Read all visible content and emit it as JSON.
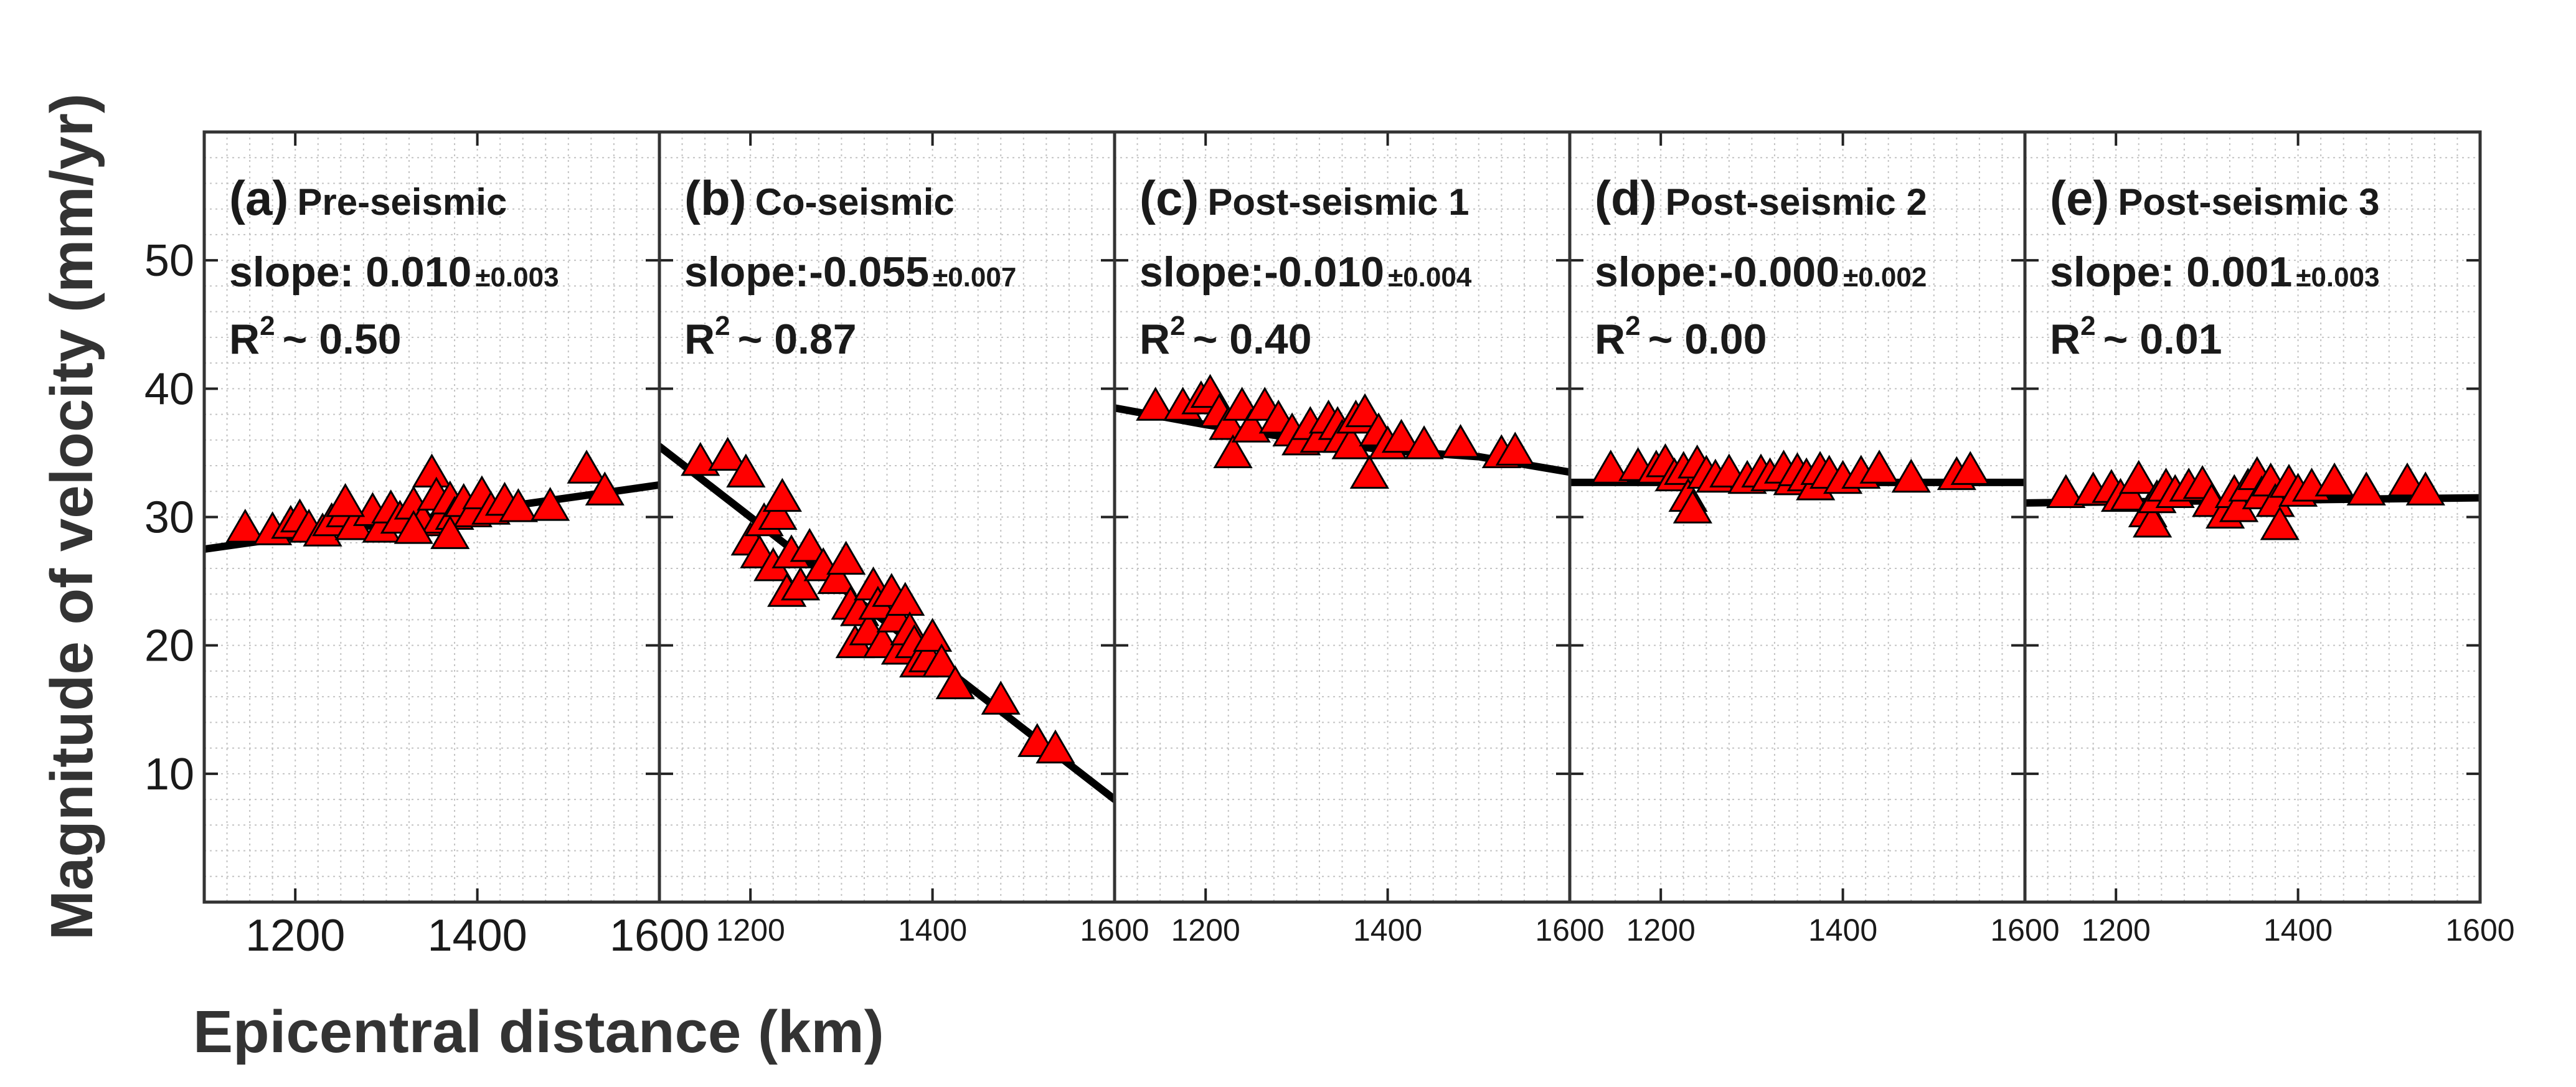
{
  "figure": {
    "ylabel": "Magnitude of velocity (mm/yr)",
    "xlabel": "Epicentral distance (km)"
  },
  "chart_data": [
    {
      "type": "scatter",
      "panel": "(a)",
      "title": "Pre-seismic",
      "slope_text": "slope: 0.010",
      "slope_err": "±0.003",
      "r2_value": "~ 0.50",
      "xlim": [
        1100,
        1600
      ],
      "ylim": [
        0,
        60
      ],
      "x_ticks": [
        "1200",
        "1400",
        "1600"
      ],
      "y_ticks": [
        "10",
        "20",
        "30",
        "40",
        "50"
      ],
      "points": [
        [
          1145,
          29
        ],
        [
          1175,
          28.8
        ],
        [
          1195,
          29.3
        ],
        [
          1205,
          29.8
        ],
        [
          1215,
          29
        ],
        [
          1230,
          28.7
        ],
        [
          1240,
          29.5
        ],
        [
          1255,
          30.2
        ],
        [
          1265,
          29.2
        ],
        [
          1285,
          30.3
        ],
        [
          1295,
          29
        ],
        [
          1305,
          30.5
        ],
        [
          1315,
          29.7
        ],
        [
          1330,
          30.8
        ],
        [
          1340,
          29.5
        ],
        [
          1350,
          33.3
        ],
        [
          1355,
          31.5
        ],
        [
          1360,
          29.7
        ],
        [
          1370,
          31.2
        ],
        [
          1375,
          30
        ],
        [
          1385,
          31
        ],
        [
          1395,
          30.2
        ],
        [
          1405,
          31.6
        ],
        [
          1415,
          30.4
        ],
        [
          1430,
          31.1
        ],
        [
          1445,
          30.6
        ],
        [
          1480,
          30.7
        ],
        [
          1520,
          33.6
        ],
        [
          1540,
          31.9
        ],
        [
          1255,
          31
        ],
        [
          1330,
          28.9
        ],
        [
          1370,
          28.5
        ]
      ],
      "fit": [
        [
          1100,
          27.5
        ],
        [
          1600,
          32.5
        ]
      ]
    },
    {
      "type": "scatter",
      "panel": "(b)",
      "title": "Co-seismic",
      "slope_text": "slope:-0.055",
      "slope_err": "±0.007",
      "r2_value": "~ 0.87",
      "xlim": [
        1100,
        1600
      ],
      "ylim": [
        0,
        60
      ],
      "x_ticks": [
        "1200",
        "1400",
        "1600"
      ],
      "y_ticks": [],
      "points": [
        [
          1145,
          34.2
        ],
        [
          1175,
          34.6
        ],
        [
          1195,
          33.3
        ],
        [
          1200,
          28
        ],
        [
          1210,
          27
        ],
        [
          1215,
          29.5
        ],
        [
          1225,
          26
        ],
        [
          1230,
          30
        ],
        [
          1235,
          31.4
        ],
        [
          1240,
          24
        ],
        [
          1245,
          27
        ],
        [
          1255,
          24.5
        ],
        [
          1265,
          27.5
        ],
        [
          1280,
          26
        ],
        [
          1295,
          25
        ],
        [
          1305,
          26.5
        ],
        [
          1310,
          23
        ],
        [
          1315,
          20
        ],
        [
          1320,
          22.5
        ],
        [
          1330,
          21
        ],
        [
          1335,
          24.5
        ],
        [
          1340,
          23
        ],
        [
          1345,
          20
        ],
        [
          1355,
          24
        ],
        [
          1360,
          22
        ],
        [
          1365,
          19.5
        ],
        [
          1370,
          23.3
        ],
        [
          1375,
          21
        ],
        [
          1380,
          20
        ],
        [
          1385,
          18.5
        ],
        [
          1395,
          18.9
        ],
        [
          1400,
          20.5
        ],
        [
          1410,
          18.5
        ],
        [
          1425,
          16.8
        ],
        [
          1475,
          15.6
        ],
        [
          1515,
          12.3
        ],
        [
          1535,
          11.8
        ]
      ],
      "fit": [
        [
          1100,
          35.5
        ],
        [
          1600,
          8
        ]
      ]
    },
    {
      "type": "scatter",
      "panel": "(c)",
      "title": "Post-seismic 1",
      "slope_text": "slope:-0.010",
      "slope_err": "±0.004",
      "r2_value": "~ 0.40",
      "xlim": [
        1100,
        1600
      ],
      "ylim": [
        0,
        60
      ],
      "x_ticks": [
        "1200",
        "1400",
        "1600"
      ],
      "y_ticks": [],
      "points": [
        [
          1145,
          38.5
        ],
        [
          1175,
          38.5
        ],
        [
          1195,
          39
        ],
        [
          1205,
          39.5
        ],
        [
          1215,
          38
        ],
        [
          1225,
          37
        ],
        [
          1230,
          34.8
        ],
        [
          1240,
          38.5
        ],
        [
          1250,
          36.8
        ],
        [
          1265,
          38.5
        ],
        [
          1280,
          37.5
        ],
        [
          1295,
          36.5
        ],
        [
          1305,
          35.8
        ],
        [
          1315,
          37
        ],
        [
          1325,
          36
        ],
        [
          1335,
          37.5
        ],
        [
          1345,
          37
        ],
        [
          1350,
          36
        ],
        [
          1360,
          35.5
        ],
        [
          1365,
          37.5
        ],
        [
          1375,
          38
        ],
        [
          1380,
          33.2
        ],
        [
          1390,
          36.5
        ],
        [
          1400,
          35.5
        ],
        [
          1415,
          36
        ],
        [
          1440,
          35.5
        ],
        [
          1480,
          35.6
        ],
        [
          1525,
          34.8
        ],
        [
          1540,
          35
        ]
      ],
      "fit": [
        [
          1100,
          38.5
        ],
        [
          1200,
          37.2
        ],
        [
          1300,
          36.1
        ],
        [
          1400,
          35.2
        ],
        [
          1500,
          34.7
        ],
        [
          1600,
          33.5
        ]
      ]
    },
    {
      "type": "scatter",
      "panel": "(d)",
      "title": "Post-seismic 2",
      "slope_text": "slope:-0.000",
      "slope_err": "±0.002",
      "r2_value": "~ 0.00",
      "xlim": [
        1100,
        1600
      ],
      "ylim": [
        0,
        60
      ],
      "x_ticks": [
        "1200",
        "1400",
        "1600"
      ],
      "y_ticks": [],
      "points": [
        [
          1145,
          33.6
        ],
        [
          1175,
          33.8
        ],
        [
          1195,
          33.6
        ],
        [
          1205,
          34.1
        ],
        [
          1215,
          33
        ],
        [
          1225,
          33.5
        ],
        [
          1230,
          31.4
        ],
        [
          1235,
          30.5
        ],
        [
          1240,
          34
        ],
        [
          1250,
          33.2
        ],
        [
          1260,
          32.9
        ],
        [
          1275,
          33.3
        ],
        [
          1295,
          32.8
        ],
        [
          1310,
          33.3
        ],
        [
          1320,
          33
        ],
        [
          1335,
          33.6
        ],
        [
          1345,
          32.7
        ],
        [
          1350,
          33.4
        ],
        [
          1360,
          33
        ],
        [
          1370,
          32.3
        ],
        [
          1375,
          33.5
        ],
        [
          1385,
          33.2
        ],
        [
          1400,
          32.8
        ],
        [
          1420,
          33.2
        ],
        [
          1440,
          33.6
        ],
        [
          1475,
          32.9
        ],
        [
          1525,
          33.1
        ],
        [
          1540,
          33.5
        ]
      ],
      "fit": [
        [
          1100,
          32.7
        ],
        [
          1600,
          32.7
        ]
      ]
    },
    {
      "type": "scatter",
      "panel": "(e)",
      "title": "Post-seismic 3",
      "slope_text": "slope: 0.001",
      "slope_err": "±0.003",
      "r2_value": "~ 0.01",
      "xlim": [
        1100,
        1600
      ],
      "ylim": [
        0,
        60
      ],
      "x_ticks": [
        "1200",
        "1400",
        "1600"
      ],
      "y_ticks": [],
      "points": [
        [
          1145,
          31.7
        ],
        [
          1175,
          31.9
        ],
        [
          1195,
          32.1
        ],
        [
          1205,
          31.4
        ],
        [
          1215,
          31.5
        ],
        [
          1225,
          32.8
        ],
        [
          1235,
          30.2
        ],
        [
          1240,
          29.4
        ],
        [
          1245,
          31.3
        ],
        [
          1255,
          32.2
        ],
        [
          1265,
          31.7
        ],
        [
          1280,
          32.2
        ],
        [
          1295,
          32.4
        ],
        [
          1305,
          31
        ],
        [
          1320,
          30.1
        ],
        [
          1330,
          31.7
        ],
        [
          1335,
          30.6
        ],
        [
          1345,
          32.2
        ],
        [
          1355,
          33.1
        ],
        [
          1360,
          31.6
        ],
        [
          1370,
          32.6
        ],
        [
          1375,
          31
        ],
        [
          1380,
          29.2
        ],
        [
          1390,
          32.5
        ],
        [
          1400,
          31.8
        ],
        [
          1415,
          32.2
        ],
        [
          1440,
          32.6
        ],
        [
          1475,
          31.9
        ],
        [
          1520,
          32.6
        ],
        [
          1540,
          31.9
        ]
      ],
      "fit": [
        [
          1100,
          31.1
        ],
        [
          1600,
          31.5
        ]
      ]
    }
  ]
}
